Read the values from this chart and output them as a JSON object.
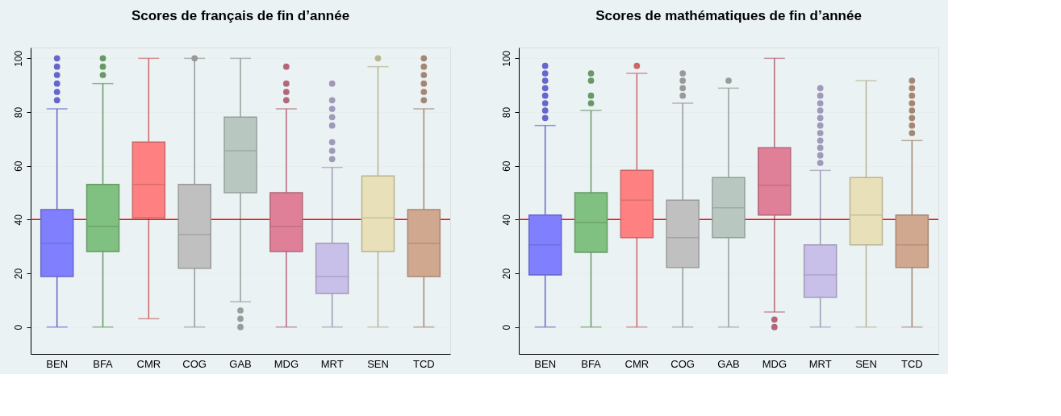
{
  "chart_data": [
    {
      "type": "box",
      "title": "Scores de français de fin d’année",
      "categories": [
        "BEN",
        "BFA",
        "CMR",
        "COG",
        "GAB",
        "MDG",
        "MRT",
        "SEN",
        "TCD"
      ],
      "colors": [
        "#8080ff",
        "#80c080",
        "#ff8080",
        "#c0c0c0",
        "#b8c8c0",
        "#e08098",
        "#c8c0e8",
        "#e8e0b8",
        "#d0a890"
      ],
      "boxes": [
        {
          "low": 0,
          "q1": 18.8,
          "median": 31.2,
          "q3": 43.7,
          "high": 81.2,
          "outliers": [
            84.4,
            87.5,
            90.6,
            93.8,
            96.9,
            100
          ]
        },
        {
          "low": 0,
          "q1": 28.1,
          "median": 37.5,
          "q3": 53.1,
          "high": 90.6,
          "outliers": [
            93.8,
            96.9,
            100
          ]
        },
        {
          "low": 3.1,
          "q1": 40.6,
          "median": 53.1,
          "q3": 68.8,
          "high": 100
        },
        {
          "low": 0,
          "q1": 21.9,
          "median": 34.4,
          "q3": 53.1,
          "high": 100,
          "outliers": [
            100
          ]
        },
        {
          "low": 9.4,
          "q1": 50,
          "median": 65.6,
          "q3": 78.1,
          "high": 100,
          "outliers": [
            0,
            3.1,
            6.2
          ]
        },
        {
          "low": 0,
          "q1": 28.1,
          "median": 37.5,
          "q3": 50,
          "high": 81.2,
          "outliers": [
            84.4,
            87.5,
            90.6,
            96.9
          ]
        },
        {
          "low": 0,
          "q1": 12.5,
          "median": 18.8,
          "q3": 31.2,
          "high": 59.4,
          "outliers": [
            62.5,
            65.6,
            68.8,
            75,
            78.1,
            81.2,
            84.4,
            90.6
          ]
        },
        {
          "low": 0,
          "q1": 28.1,
          "median": 40.6,
          "q3": 56.2,
          "high": 96.9,
          "outliers": [
            100
          ]
        },
        {
          "low": 0,
          "q1": 18.8,
          "median": 31.2,
          "q3": 43.7,
          "high": 81.2,
          "outliers": [
            84.4,
            87.5,
            90.6,
            93.8,
            96.9,
            100
          ]
        }
      ],
      "ylim": [
        -10,
        104
      ],
      "yticks": [
        0,
        20,
        40,
        60,
        80,
        100
      ],
      "grid": "y",
      "ref_lines": [
        {
          "axis": "y",
          "value": 40,
          "color": "#ff0000"
        }
      ]
    },
    {
      "type": "box",
      "title": "Scores de mathématiques de fin d’année",
      "categories": [
        "BEN",
        "BFA",
        "CMR",
        "COG",
        "GAB",
        "MDG",
        "MRT",
        "SEN",
        "TCD"
      ],
      "colors": [
        "#8080ff",
        "#80c080",
        "#ff8080",
        "#c0c0c0",
        "#b8c8c0",
        "#e08098",
        "#c8c0e8",
        "#e8e0b8",
        "#d0a890"
      ],
      "boxes": [
        {
          "low": 0,
          "q1": 19.4,
          "median": 30.6,
          "q3": 41.7,
          "high": 75,
          "outliers": [
            77.8,
            80.6,
            83.3,
            86.1,
            88.9,
            91.7,
            94.4,
            97.2
          ]
        },
        {
          "low": 0,
          "q1": 27.8,
          "median": 38.9,
          "q3": 50,
          "high": 80.6,
          "outliers": [
            83.3,
            86.1,
            91.7,
            94.4
          ]
        },
        {
          "low": 0,
          "q1": 33.3,
          "median": 47.2,
          "q3": 58.3,
          "high": 94.4,
          "outliers": [
            97.2
          ]
        },
        {
          "low": 0,
          "q1": 22.2,
          "median": 33.3,
          "q3": 47.2,
          "high": 83.3,
          "outliers": [
            86.1,
            88.9,
            91.7,
            94.4
          ]
        },
        {
          "low": 0,
          "q1": 33.3,
          "median": 44.4,
          "q3": 55.6,
          "high": 88.9,
          "outliers": [
            91.7
          ]
        },
        {
          "low": 5.6,
          "q1": 41.7,
          "median": 52.8,
          "q3": 66.7,
          "high": 100,
          "outliers": [
            0,
            2.8
          ]
        },
        {
          "low": 0,
          "q1": 11.1,
          "median": 19.4,
          "q3": 30.6,
          "high": 58.3,
          "outliers": [
            61.1,
            63.9,
            66.7,
            69.4,
            72.2,
            75,
            77.8,
            80.6,
            83.3,
            86.1,
            88.9
          ]
        },
        {
          "low": 0,
          "q1": 30.6,
          "median": 41.7,
          "q3": 55.6,
          "high": 91.7
        },
        {
          "low": 0,
          "q1": 22.2,
          "median": 30.6,
          "q3": 41.7,
          "high": 69.4,
          "outliers": [
            72.2,
            75,
            77.8,
            80.6,
            83.3,
            86.1,
            88.9,
            91.7
          ]
        }
      ],
      "ylim": [
        -10,
        104
      ],
      "yticks": [
        0,
        20,
        40,
        60,
        80,
        100
      ],
      "grid": "y",
      "ref_lines": [
        {
          "axis": "y",
          "value": 40,
          "color": "#ff0000"
        }
      ]
    }
  ]
}
